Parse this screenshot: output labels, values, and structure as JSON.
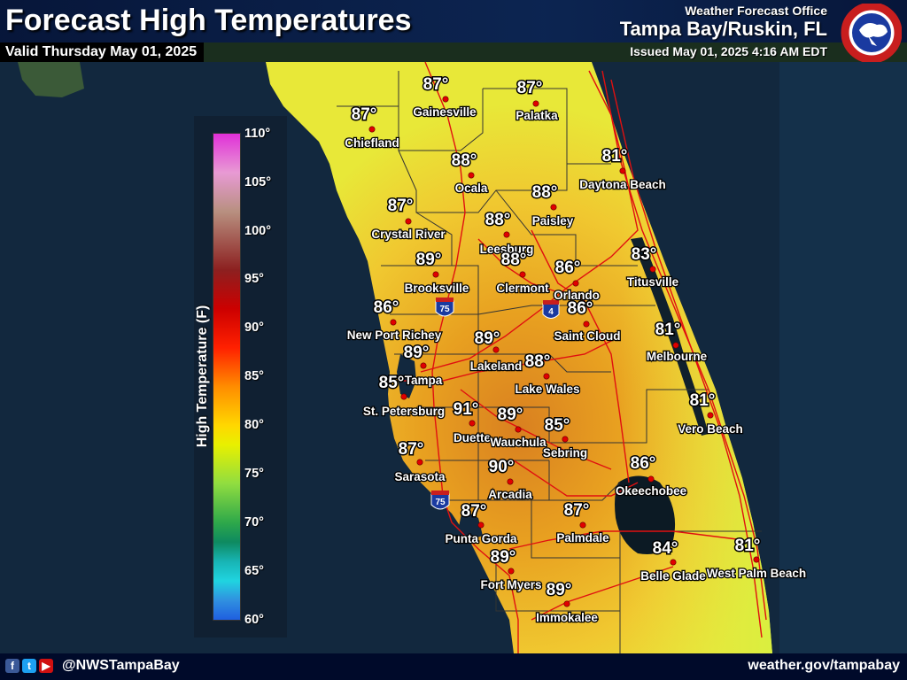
{
  "header": {
    "title": "Forecast High Temperatures",
    "valid": "Valid Thursday May 01, 2025",
    "office_line": "Weather Forecast Office",
    "office_name": "Tampa Bay/Ruskin, FL",
    "issued": "Issued May 01, 2025 4:16 AM EDT",
    "logo_text": "NATIONAL WEATHER SERVICE"
  },
  "legend": {
    "title": "High Temperature (F)",
    "ticks": [
      "110°",
      "105°",
      "100°",
      "95°",
      "90°",
      "85°",
      "80°",
      "75°",
      "70°",
      "65°",
      "60°"
    ],
    "colors": {
      "110": "#e030d8",
      "90": "#ff8c00",
      "85": "#ffd700",
      "80": "#90dd40",
      "70": "#0e8a60",
      "60": "#1f5fe0"
    }
  },
  "interstates": [
    "75",
    "4",
    "75"
  ],
  "cities": [
    {
      "name": "Gainesville",
      "temp": "87°"
    },
    {
      "name": "Palatka",
      "temp": "87°"
    },
    {
      "name": "Chiefland",
      "temp": "87°"
    },
    {
      "name": "Ocala",
      "temp": "88°"
    },
    {
      "name": "Daytona Beach",
      "temp": "81°"
    },
    {
      "name": "Paisley",
      "temp": "88°"
    },
    {
      "name": "Crystal River",
      "temp": "87°"
    },
    {
      "name": "Leesburg",
      "temp": "88°"
    },
    {
      "name": "Brooksville",
      "temp": "89°"
    },
    {
      "name": "Clermont",
      "temp": "88°"
    },
    {
      "name": "Orlando",
      "temp": "86°"
    },
    {
      "name": "Titusville",
      "temp": "83°"
    },
    {
      "name": "New Port Richey",
      "temp": "86°"
    },
    {
      "name": "Saint Cloud",
      "temp": "86°"
    },
    {
      "name": "Lakeland",
      "temp": "89°"
    },
    {
      "name": "Tampa",
      "temp": "89°"
    },
    {
      "name": "Melbourne",
      "temp": "81°"
    },
    {
      "name": "Lake Wales",
      "temp": "88°"
    },
    {
      "name": "St. Petersburg",
      "temp": "85°"
    },
    {
      "name": "Duette",
      "temp": "91°"
    },
    {
      "name": "Wauchula",
      "temp": "89°"
    },
    {
      "name": "Vero Beach",
      "temp": "81°"
    },
    {
      "name": "Sebring",
      "temp": "85°"
    },
    {
      "name": "Sarasota",
      "temp": "87°"
    },
    {
      "name": "Arcadia",
      "temp": "90°"
    },
    {
      "name": "Okeechobee",
      "temp": "86°"
    },
    {
      "name": "Punta Gorda",
      "temp": "87°"
    },
    {
      "name": "Palmdale",
      "temp": "87°"
    },
    {
      "name": "Belle Glade",
      "temp": "84°"
    },
    {
      "name": "West Palm Beach",
      "temp": "81°"
    },
    {
      "name": "Fort Myers",
      "temp": "89°"
    },
    {
      "name": "Immokalee",
      "temp": "89°"
    }
  ],
  "footer": {
    "handle": "@NWSTampaBay",
    "website": "weather.gov/tampabay",
    "social_icons": [
      "facebook-icon",
      "twitter-icon",
      "youtube-icon"
    ]
  }
}
